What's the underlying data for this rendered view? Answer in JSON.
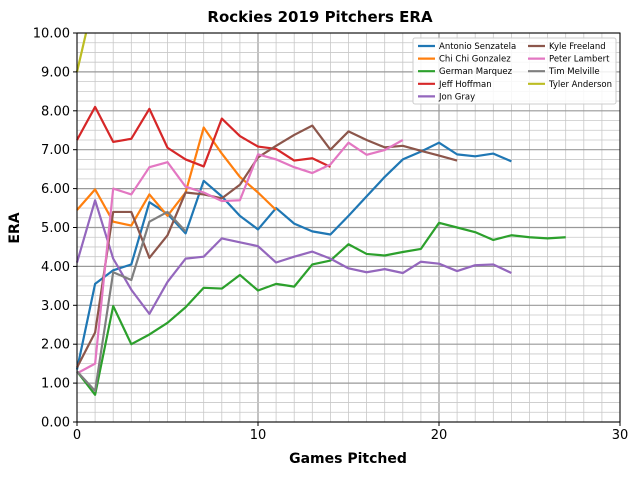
{
  "chart_data": {
    "type": "line",
    "title": "Rockies 2019 Pitchers ERA",
    "xlabel": "Games Pitched",
    "ylabel": "ERA",
    "xlim": [
      0,
      30
    ],
    "ylim": [
      0,
      10
    ],
    "xticks": [
      "0",
      "10",
      "20",
      "30"
    ],
    "xtick_values": [
      0,
      10,
      20,
      30
    ],
    "yticks": [
      "0.00",
      "1.00",
      "2.00",
      "3.00",
      "4.00",
      "5.00",
      "6.00",
      "7.00",
      "8.00",
      "9.00",
      "10.00"
    ],
    "ytick_values": [
      0,
      1,
      2,
      3,
      4,
      5,
      6,
      7,
      8,
      9,
      10
    ],
    "grid": true,
    "legend_position": "top-right",
    "series": [
      {
        "name": "Antonio Senzatela",
        "color": "#1f77b4",
        "x": [
          0,
          1,
          2,
          3,
          4,
          5,
          6,
          7,
          8,
          9,
          10,
          11,
          12,
          13,
          14,
          15,
          16,
          17,
          18,
          19,
          20,
          21,
          22,
          23,
          24
        ],
        "values": [
          1.35,
          3.55,
          3.9,
          4.05,
          5.65,
          5.35,
          4.85,
          6.2,
          5.8,
          5.3,
          4.95,
          5.5,
          5.1,
          4.9,
          4.82,
          5.3,
          5.8,
          6.3,
          6.75,
          6.95,
          7.18,
          6.88,
          6.83,
          6.9,
          6.7
        ]
      },
      {
        "name": "Chi Chi Gonzalez",
        "color": "#ff7f0e",
        "x": [
          0,
          1,
          2,
          3,
          4,
          5,
          6,
          7,
          8,
          9,
          10,
          11
        ],
        "values": [
          5.45,
          5.98,
          5.15,
          5.05,
          5.85,
          5.3,
          5.9,
          7.57,
          6.9,
          6.3,
          5.9,
          5.45
        ]
      },
      {
        "name": "German Marquez",
        "color": "#2ca02c",
        "x": [
          0,
          1,
          2,
          3,
          4,
          5,
          6,
          7,
          8,
          9,
          10,
          11,
          12,
          13,
          14,
          15,
          16,
          17,
          18,
          19,
          20,
          21,
          22,
          23,
          24,
          25,
          26,
          27
        ],
        "values": [
          1.3,
          0.7,
          2.98,
          2.0,
          2.25,
          2.55,
          2.95,
          3.45,
          3.43,
          3.78,
          3.38,
          3.55,
          3.48,
          4.05,
          4.15,
          4.57,
          4.32,
          4.28,
          4.37,
          4.45,
          5.12,
          5.0,
          4.88,
          4.68,
          4.8,
          4.75,
          4.72,
          4.75
        ]
      },
      {
        "name": "Jeff Hoffman",
        "color": "#d62728",
        "x": [
          0,
          1,
          2,
          3,
          4,
          5,
          6,
          7,
          8,
          9,
          10,
          11,
          12,
          13,
          14
        ],
        "values": [
          7.25,
          8.1,
          7.2,
          7.28,
          8.05,
          7.05,
          6.75,
          6.57,
          7.8,
          7.35,
          7.08,
          7.02,
          6.72,
          6.78,
          6.56
        ]
      },
      {
        "name": "Jon Gray",
        "color": "#9467bd",
        "x": [
          0,
          1,
          2,
          3,
          4,
          5,
          6,
          7,
          8,
          9,
          10,
          11,
          12,
          13,
          14,
          15,
          16,
          17,
          18,
          19,
          20,
          21,
          22,
          23,
          24
        ],
        "values": [
          4.1,
          5.7,
          4.2,
          3.4,
          2.78,
          3.6,
          4.2,
          4.25,
          4.72,
          4.62,
          4.52,
          4.1,
          4.25,
          4.38,
          4.2,
          3.95,
          3.85,
          3.93,
          3.83,
          4.12,
          4.07,
          3.88,
          4.03,
          4.05,
          3.83
        ]
      },
      {
        "name": "Kyle Freeland",
        "color": "#8c564b",
        "x": [
          0,
          1,
          2,
          3,
          4,
          5,
          6,
          7,
          8,
          9,
          10,
          11,
          12,
          13,
          14,
          15,
          16,
          17,
          18,
          19,
          20,
          21
        ],
        "values": [
          1.4,
          2.3,
          5.4,
          5.4,
          4.22,
          4.8,
          5.9,
          5.85,
          5.75,
          6.1,
          6.8,
          7.1,
          7.38,
          7.62,
          7.0,
          7.47,
          7.25,
          7.06,
          7.1,
          6.97,
          6.85,
          6.72
        ]
      },
      {
        "name": "Peter Lambert",
        "color": "#e377c2",
        "x": [
          0,
          1,
          2,
          3,
          4,
          5,
          6,
          7,
          8,
          9,
          10,
          11,
          12,
          13,
          14,
          15,
          16,
          17,
          18
        ],
        "values": [
          1.25,
          1.5,
          6.0,
          5.85,
          6.55,
          6.68,
          6.05,
          5.9,
          5.68,
          5.7,
          6.88,
          6.75,
          6.55,
          6.4,
          6.62,
          7.18,
          6.87,
          6.99,
          7.25
        ]
      },
      {
        "name": "Tim Melville",
        "color": "#7f7f7f",
        "x": [
          0,
          1,
          2,
          3,
          4,
          5,
          6
        ],
        "values": [
          1.3,
          0.8,
          3.85,
          3.65,
          5.15,
          5.4,
          4.9
        ]
      },
      {
        "name": "Tyler Anderson",
        "color": "#bcbd22",
        "x": [
          0,
          0.5
        ],
        "values": [
          9.0,
          10.0
        ]
      }
    ]
  }
}
